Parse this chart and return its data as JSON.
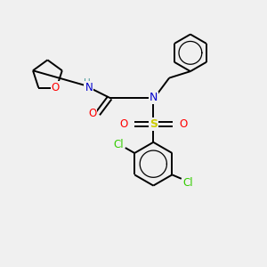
{
  "background_color": "#f0f0f0",
  "atom_colors": {
    "C": "#000000",
    "N": "#0000cc",
    "O": "#ff0000",
    "S": "#cccc00",
    "Cl": "#33cc00",
    "H": "#4a9a9a"
  },
  "figsize": [
    3.0,
    3.0
  ],
  "dpi": 100,
  "xlim": [
    0,
    10
  ],
  "ylim": [
    0,
    10
  ]
}
